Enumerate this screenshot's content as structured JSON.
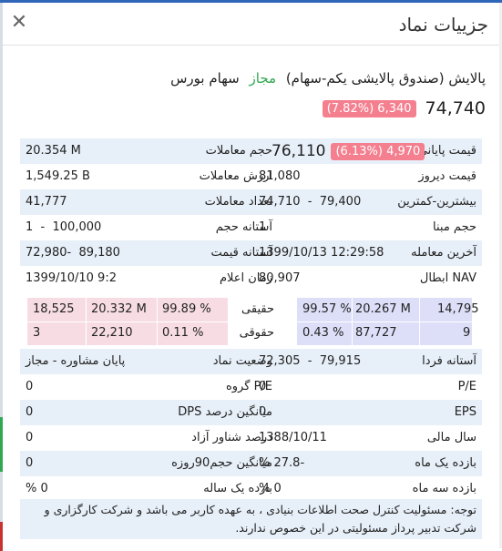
{
  "dialog": {
    "title": "جزییات نماد"
  },
  "symbol": {
    "name": "پالایش (صندوق پالایشی یکم-سهام)",
    "status": "مجاز",
    "market": "سهام بورس",
    "last_price": "74,740",
    "change": "6,340",
    "change_pct": "(7.82%)"
  },
  "rows": [
    {
      "l1": "قیمت پایانی",
      "v1": "76,110",
      "b1": "4,970",
      "p1": "(6.13%)",
      "l2": "حجم معاملات",
      "v2": "20.354 M"
    },
    {
      "l1": "قیمت دیروز",
      "v1": "81,080",
      "l2": "ارزش معاملات",
      "v2": "1,549.25 B"
    },
    {
      "l1": "بیشترین-کمترین",
      "v1a": "79,400",
      "v1b": "74,710",
      "l2": "تعداد معاملات",
      "v2": "41,777"
    },
    {
      "l1": "حجم مبنا",
      "v1": "1",
      "l2": "آستانه حجم",
      "v2a": "100,000",
      "v2b": "1"
    },
    {
      "l1": "آخرین معامله",
      "v1": "1399/10/13 12:29:58",
      "l2": "آستانه قیمت",
      "v2a": "89,180",
      "v2b": "72,980"
    },
    {
      "l1": "NAV ابطال",
      "v1": "80,907",
      "l2": "زمان اعلام",
      "v2": "1399/10/10 9:2"
    }
  ],
  "individual": {
    "row_label_1": "حقیقی",
    "row_label_2": "حقوقی",
    "buy": [
      {
        "count": "14,795",
        "volume": "20.267 M",
        "pct": "99.57 %"
      },
      {
        "count": "9",
        "volume": "87,727",
        "pct": "0.43 %"
      }
    ],
    "sell": [
      {
        "pct": "99.89 %",
        "volume": "20.332 M",
        "count": "18,525"
      },
      {
        "pct": "0.11 %",
        "volume": "22,210",
        "count": "3"
      }
    ]
  },
  "rows2": [
    {
      "l1": "آستانه فردا",
      "v1a": "79,915",
      "v1b": "72,305",
      "l2": "وضعیت نماد",
      "v2": "پایان مشاوره - مجاز"
    },
    {
      "l1": "P/E",
      "v1": "0",
      "l2": "P/E گروه",
      "v2": "0"
    },
    {
      "l1": "EPS",
      "v1": "0",
      "l2": "میانگین درصد DPS",
      "v2": "0"
    },
    {
      "l1": "سال مالی",
      "v1": "1388/10/11",
      "l2": "درصد شناور آزاد",
      "v2": "0"
    },
    {
      "l1": "بازده یک ماه",
      "v1": "-27.8 %",
      "l2": "میانگین حجم90روزه",
      "v2": "0"
    },
    {
      "l1": "بازده سه ماه",
      "v1": "0 %",
      "l2": "بازده یک ساله",
      "v2": "0 %"
    }
  ],
  "note": "توجه: مسئولیت کنترل صحت اطلاعات بنیادی ، به عهده کاربر می باشد و شرکت کارگزاری و شرکت تدبیر پرداز مسئولیتی در این خصوص ندارند.",
  "colors": {
    "accent": "#2f66b8",
    "green": "#2fa84f",
    "badge": "#f47f8f",
    "row_band": "#e7eff8",
    "buy_bg": "#dddff8",
    "sell_bg": "#f7dde3"
  },
  "icons": {
    "close": "close-icon"
  }
}
